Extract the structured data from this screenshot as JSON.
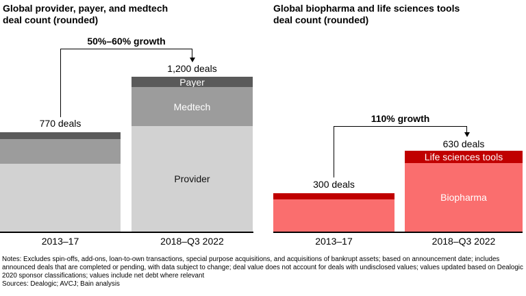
{
  "charts": [
    {
      "title_line1": "Global provider, payer, and medtech",
      "title_line2": "deal count (rounded)",
      "growth_label": "50%–60% growth",
      "bars": [
        {
          "axis_label": "2013–17",
          "total_label": "770 deals",
          "segments": [
            {
              "name": "Payer",
              "label": "",
              "value": 50
            },
            {
              "name": "Medtech",
              "label": "",
              "value": 195
            },
            {
              "name": "Provider",
              "label": "",
              "value": 525
            }
          ]
        },
        {
          "axis_label": "2018–Q3 2022",
          "total_label": "1,200 deals",
          "segments": [
            {
              "name": "Payer",
              "label": "Payer",
              "value": 80
            },
            {
              "name": "Medtech",
              "label": "Medtech",
              "value": 300
            },
            {
              "name": "Provider",
              "label": "Provider",
              "value": 820
            }
          ]
        }
      ]
    },
    {
      "title_line1": "Global biopharma and life sciences tools",
      "title_line2": "deal count (rounded)",
      "growth_label": "110% growth",
      "bars": [
        {
          "axis_label": "2013–17",
          "total_label": "300 deals",
          "segments": [
            {
              "name": "Life sciences tools",
              "label": "",
              "value": 50
            },
            {
              "name": "Biopharma",
              "label": "",
              "value": 250
            }
          ]
        },
        {
          "axis_label": "2018–Q3 2022",
          "total_label": "630 deals",
          "segments": [
            {
              "name": "Life sciences tools",
              "label": "Life sciences tools",
              "value": 100
            },
            {
              "name": "Biopharma",
              "label": "Biopharma",
              "value": 530
            }
          ]
        }
      ]
    }
  ],
  "footer": {
    "notes": "Notes: Excludes spin-offs, add-ons, loan-to-own transactions, special purpose acquisitions, and acquisitions of bankrupt assets; based on announcement date; includes announced deals that are completed or pending, with data subject to change; deal value does not account for deals with undisclosed values; values updated based on Dealogic 2020 sponsor classifications; values include net debt where relevant",
    "sources": "Sources: Dealogic; AVCJ; Bain analysis"
  },
  "colors": {
    "payer": "#5a5a5a",
    "medtech": "#9c9c9c",
    "provider": "#d2d2d2",
    "life_sciences_tools": "#c00000",
    "biopharma": "#fa6e6e",
    "axis": "#000000"
  },
  "chart_data": [
    {
      "type": "bar",
      "stacked": true,
      "title": "Global provider, payer, and medtech deal count (rounded)",
      "categories": [
        "2013–17",
        "2018–Q3 2022"
      ],
      "series": [
        {
          "name": "Provider",
          "values": [
            525,
            820
          ],
          "color": "#d2d2d2"
        },
        {
          "name": "Medtech",
          "values": [
            195,
            300
          ],
          "color": "#9c9c9c"
        },
        {
          "name": "Payer",
          "values": [
            50,
            80
          ],
          "color": "#5a5a5a"
        }
      ],
      "totals": [
        770,
        1200
      ],
      "total_labels": [
        "770 deals",
        "1,200 deals"
      ],
      "annotation": "50%–60% growth",
      "legend_position": "in-bar",
      "grid": false,
      "ylabel": "",
      "xlabel": ""
    },
    {
      "type": "bar",
      "stacked": true,
      "title": "Global biopharma and life sciences tools deal count (rounded)",
      "categories": [
        "2013–17",
        "2018–Q3 2022"
      ],
      "series": [
        {
          "name": "Biopharma",
          "values": [
            250,
            530
          ],
          "color": "#fa6e6e"
        },
        {
          "name": "Life sciences tools",
          "values": [
            50,
            100
          ],
          "color": "#c00000"
        }
      ],
      "totals": [
        300,
        630
      ],
      "total_labels": [
        "300 deals",
        "630 deals"
      ],
      "annotation": "110% growth",
      "legend_position": "in-bar",
      "grid": false,
      "ylabel": "",
      "xlabel": ""
    }
  ]
}
